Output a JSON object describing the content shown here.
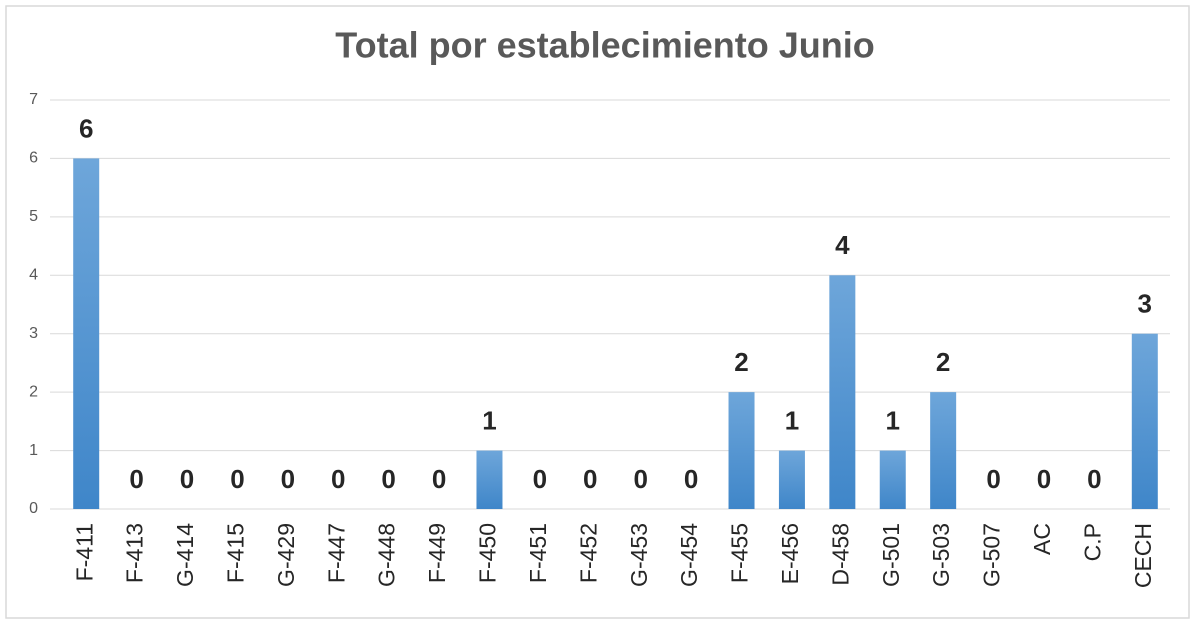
{
  "chart_data": {
    "type": "bar",
    "title": "Total por establecimiento  Junio",
    "categories": [
      "F-411",
      "F-413",
      "G-414",
      "F-415",
      "G-429",
      "F-447",
      "G-448",
      "F-449",
      "F-450",
      "F-451",
      "F-452",
      "G-453",
      "G-454",
      "F-455",
      "E-456",
      "D-458",
      "G-501",
      "G-503",
      "G-507",
      "AC",
      "C.P",
      "CECH"
    ],
    "values": [
      6,
      0,
      0,
      0,
      0,
      0,
      0,
      0,
      1,
      0,
      0,
      0,
      0,
      2,
      1,
      4,
      1,
      2,
      0,
      0,
      0,
      3
    ],
    "color": "#5b9bd5",
    "ylim": [
      0,
      7
    ],
    "yticks": [
      0,
      1,
      2,
      3,
      4,
      5,
      6,
      7
    ],
    "grid": true,
    "data_labels": true
  }
}
